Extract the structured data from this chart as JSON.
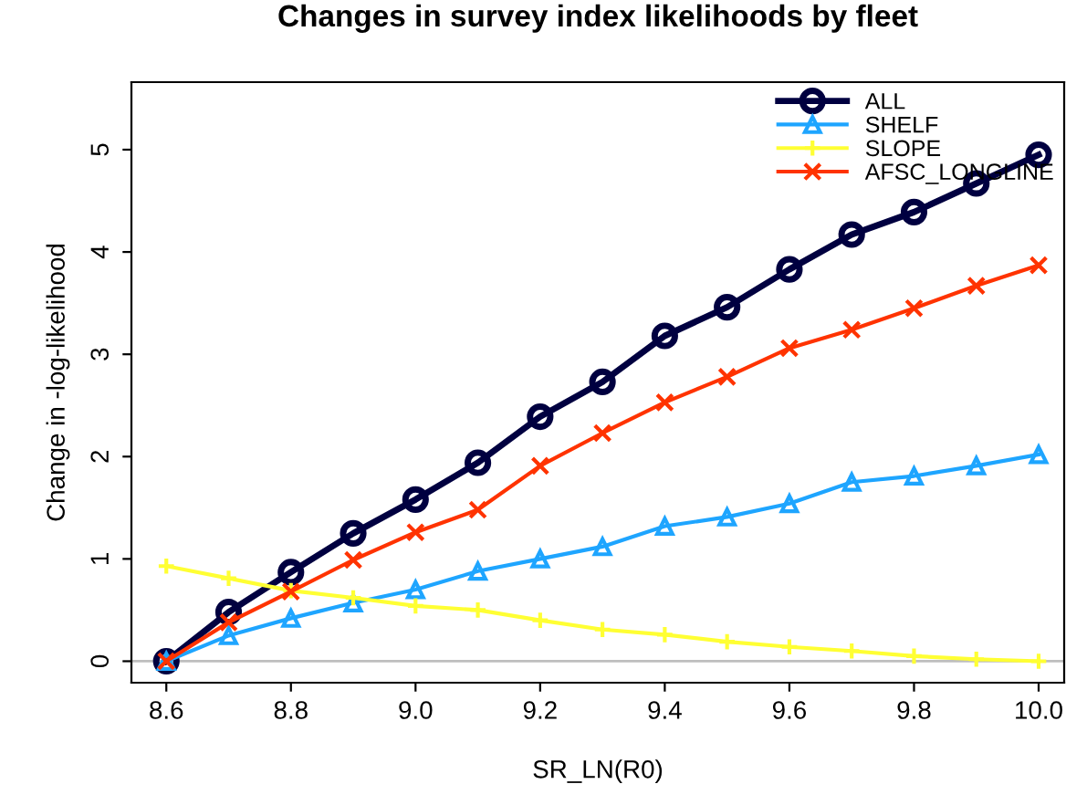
{
  "chart_data": {
    "type": "line",
    "title": "Changes in survey index likelihoods by fleet",
    "xlabel": "SR_LN(R0)",
    "ylabel": "Change in -log-likelihood",
    "x": [
      8.6,
      8.7,
      8.8,
      8.9,
      9.0,
      9.1,
      9.2,
      9.3,
      9.4,
      9.5,
      9.6,
      9.7,
      9.8,
      9.9,
      10.0
    ],
    "series": [
      {
        "name": "ALL",
        "color": "#000040",
        "marker": "circle",
        "values": [
          0,
          0.48,
          0.87,
          1.25,
          1.58,
          1.94,
          2.39,
          2.73,
          3.18,
          3.46,
          3.83,
          4.17,
          4.39,
          4.67,
          4.95
        ]
      },
      {
        "name": "SHELF",
        "color": "#1ea5ff",
        "marker": "triangle",
        "values": [
          0,
          0.25,
          0.42,
          0.57,
          0.7,
          0.88,
          1.0,
          1.12,
          1.32,
          1.41,
          1.54,
          1.75,
          1.81,
          1.91,
          2.02
        ]
      },
      {
        "name": "SLOPE",
        "color": "#ffff33",
        "marker": "cross",
        "values": [
          0.93,
          0.81,
          0.69,
          0.62,
          0.54,
          0.5,
          0.4,
          0.31,
          0.26,
          0.19,
          0.14,
          0.1,
          0.05,
          0.02,
          0.0
        ]
      },
      {
        "name": "AFSC_LONGLINE",
        "color": "#ff3300",
        "marker": "x",
        "values": [
          0,
          0.38,
          0.68,
          0.99,
          1.26,
          1.48,
          1.91,
          2.23,
          2.53,
          2.78,
          3.06,
          3.24,
          3.45,
          3.67,
          3.87
        ]
      }
    ],
    "xlim": [
      8.544,
      10.041
    ],
    "ylim": [
      -0.21,
      5.66
    ],
    "xticks": [
      {
        "value": 8.6,
        "label": "8.6"
      },
      {
        "value": 8.8,
        "label": "8.8"
      },
      {
        "value": 9.0,
        "label": "9.0"
      },
      {
        "value": 9.2,
        "label": "9.2"
      },
      {
        "value": 9.4,
        "label": "9.4"
      },
      {
        "value": 9.6,
        "label": "9.6"
      },
      {
        "value": 9.8,
        "label": "9.8"
      },
      {
        "value": 10.0,
        "label": "10.0"
      }
    ],
    "yticks": [
      0,
      1,
      2,
      3,
      4,
      5
    ],
    "ref_lines": [
      {
        "axis": "y",
        "value": 0,
        "color": "#bebebe"
      }
    ],
    "grid": false,
    "legend": "top right",
    "line_style": "solid"
  }
}
